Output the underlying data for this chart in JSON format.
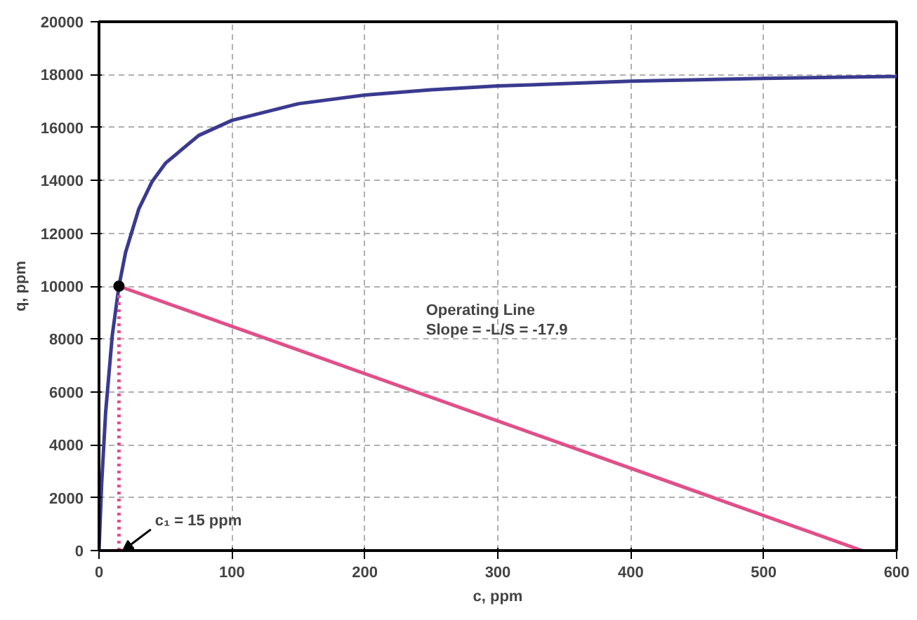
{
  "chart_data": {
    "type": "line",
    "xlabel": "c, ppm",
    "ylabel": "q, ppm",
    "xlim": [
      0,
      600
    ],
    "ylim": [
      0,
      20000
    ],
    "xticks": [
      0,
      100,
      200,
      300,
      400,
      500,
      600
    ],
    "yticks": [
      0,
      2000,
      4000,
      6000,
      8000,
      10000,
      12000,
      14000,
      16000,
      18000,
      20000
    ],
    "grid": true,
    "series": [
      {
        "color": "#3a3a90",
        "line_style": "solid",
        "marker": "none",
        "x": [
          0,
          2,
          5,
          10,
          15,
          20,
          30,
          40,
          50,
          75,
          100,
          150,
          200,
          250,
          300,
          400,
          500,
          600
        ],
        "values": [
          0,
          2540,
          5240,
          8150,
          10000,
          11280,
          12930,
          13960,
          14650,
          15700,
          16270,
          16900,
          17230,
          17430,
          17570,
          17750,
          17860,
          17930
        ]
      },
      {
        "color": "#e0508a",
        "line_style": "solid",
        "marker": "none",
        "x": [
          15,
          574
        ],
        "values": [
          10000,
          0
        ]
      },
      {
        "color": "#e0508a",
        "line_style": "dotted",
        "marker": "none",
        "x": [
          15,
          15
        ],
        "values": [
          0,
          10000
        ]
      },
      {
        "type": "scatter",
        "color": "#000000",
        "marker": "circle",
        "x": [
          15
        ],
        "values": [
          10000
        ]
      }
    ],
    "annotations": [
      "Operating Line\nSlope = -L/S = -17.9",
      {
        "text": "c₁ = 15 ppm",
        "x": 15,
        "y": 0
      }
    ]
  }
}
